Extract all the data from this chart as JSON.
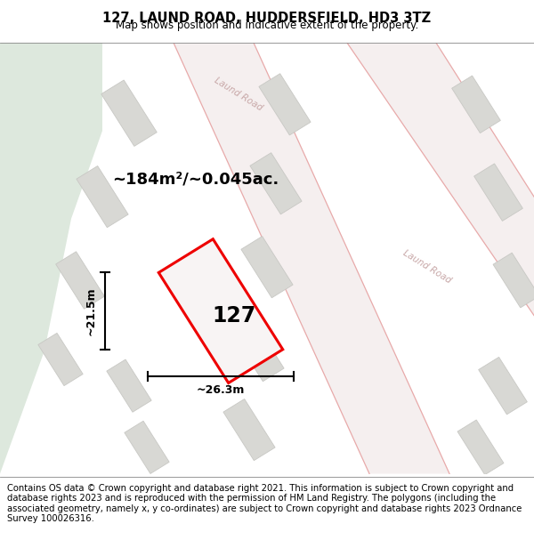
{
  "title": "127, LAUND ROAD, HUDDERSFIELD, HD3 3TZ",
  "subtitle": "Map shows position and indicative extent of the property.",
  "area_label": "~184m²/~0.045ac.",
  "number_label": "127",
  "width_label": "~26.3m",
  "height_label": "~21.5m",
  "footer_text": "Contains OS data © Crown copyright and database right 2021. This information is subject to Crown copyright and database rights 2023 and is reproduced with the permission of HM Land Registry. The polygons (including the associated geometry, namely x, y co-ordinates) are subject to Crown copyright and database rights 2023 Ordnance Survey 100026316.",
  "bg_color": "#f0f0ec",
  "road_fill": "#f5efef",
  "road_line": "#e8aaaa",
  "bld_fill": "#d8d8d4",
  "bld_edge": "#c8c8c4",
  "plot_edge": "#ee0000",
  "plot_fill": "#f8f4f4",
  "green_fill": "#dde8dd",
  "title_fontsize": 10.5,
  "subtitle_fontsize": 8.5,
  "footer_fontsize": 7.2,
  "road_label_color": "#c8a8a8",
  "road_label_size": 7.5
}
